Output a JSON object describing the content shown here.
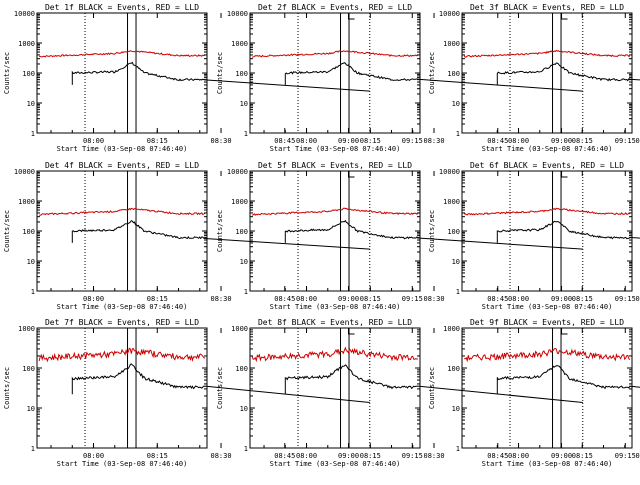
{
  "panels": [
    {
      "title": "Det 1f BLACK = Events, RED = LLD",
      "start": "07:46:40",
      "xlabel": "Start Time (03-Sep-08 07:46:40)",
      "ylabel": "Counts/sec",
      "ymax": 10000
    },
    {
      "title": "Det 2f BLACK = Events, RED = LLD",
      "start": "07:46:40",
      "xlabel": "Start Time (03-Sep-08 07:46:40)",
      "ylabel": "Counts/sec",
      "ymax": 10000
    },
    {
      "title": "Det 3f BLACK = Events, RED = LLD",
      "start": "07:46:40",
      "xlabel": "Start Time (03-Sep-08 07:46:40)",
      "ylabel": "Counts/sec",
      "ymax": 10000
    },
    {
      "title": "Det 4f BLACK = Events, RED = LLD",
      "start": "07:46:40",
      "xlabel": "Start Time (03-Sep-08 07:46:40)",
      "ylabel": "Counts/sec",
      "ymax": 10000
    },
    {
      "title": "Det 5f BLACK = Events, RED = LLD",
      "start": "07:46:40",
      "xlabel": "Start Time (03-Sep-08 07:46:40)",
      "ylabel": "Counts/sec",
      "ymax": 10000
    },
    {
      "title": "Det 6f BLACK = Events, RED = LLD",
      "start": "07:46:40",
      "xlabel": "Start Time (03-Sep-08 07:46:40)",
      "ylabel": "Counts/sec",
      "ymax": 10000
    },
    {
      "title": "Det 7f BLACK = Events, RED = LLD",
      "start": "07:46:40",
      "xlabel": "Start Time (03-Sep-08 07:46:40)",
      "ylabel": "Counts/sec",
      "ymax": 1000
    },
    {
      "title": "Det 8f BLACK = Events, RED = LLD",
      "start": "07:46:40",
      "xlabel": "Start Time (03-Sep-08 07:46:40)",
      "ylabel": "Counts/sec",
      "ymax": 1000
    },
    {
      "title": "Det 9f BLACK = Events, RED = LLD",
      "start": "07:46:40",
      "xlabel": "Start Time (03-Sep-08 07:46:40)",
      "ylabel": "Counts/sec",
      "ymax": 1000
    }
  ],
  "chart_data": {
    "type": "line",
    "y_scale": "log",
    "ylim_1_to_6": [
      1,
      10000
    ],
    "ylim_7_to_9": [
      1,
      1000
    ],
    "x_ticks": [
      "08:00",
      "08:15",
      "08:30",
      "08:45",
      "09:00",
      "09:15"
    ],
    "xlim_minutes_after_08_00": [
      -13.3,
      26.7
    ],
    "vertical_dotted_lines_at": [
      "07:58",
      "09:05"
    ],
    "vertical_solid_lines_at": [
      "08:08",
      "08:10"
    ],
    "series_colors": {
      "events": "#000000",
      "lld": "#cc0000"
    },
    "events_profile": [
      {
        "t": "07:55",
        "v": 100
      },
      {
        "t": "08:05",
        "v": 110
      },
      {
        "t": "08:09",
        "v": 220
      },
      {
        "t": "08:12",
        "v": 100
      },
      {
        "t": "08:20",
        "v": 60
      },
      {
        "t": "08:40",
        "v": 60
      },
      {
        "t": "08:50",
        "v": 150
      },
      {
        "t": "08:55",
        "v": 220
      },
      {
        "t": "09:00",
        "v": 190
      },
      {
        "t": "09:05",
        "v": 100
      }
    ],
    "lld_profile": [
      {
        "t": "07:46",
        "v": 350
      },
      {
        "t": "08:05",
        "v": 450
      },
      {
        "t": "08:09",
        "v": 550
      },
      {
        "t": "08:20",
        "v": 380
      },
      {
        "t": "08:40",
        "v": 380
      },
      {
        "t": "08:55",
        "v": 650
      },
      {
        "t": "09:05",
        "v": 450
      },
      {
        "t": "09:20",
        "v": 350
      }
    ]
  }
}
